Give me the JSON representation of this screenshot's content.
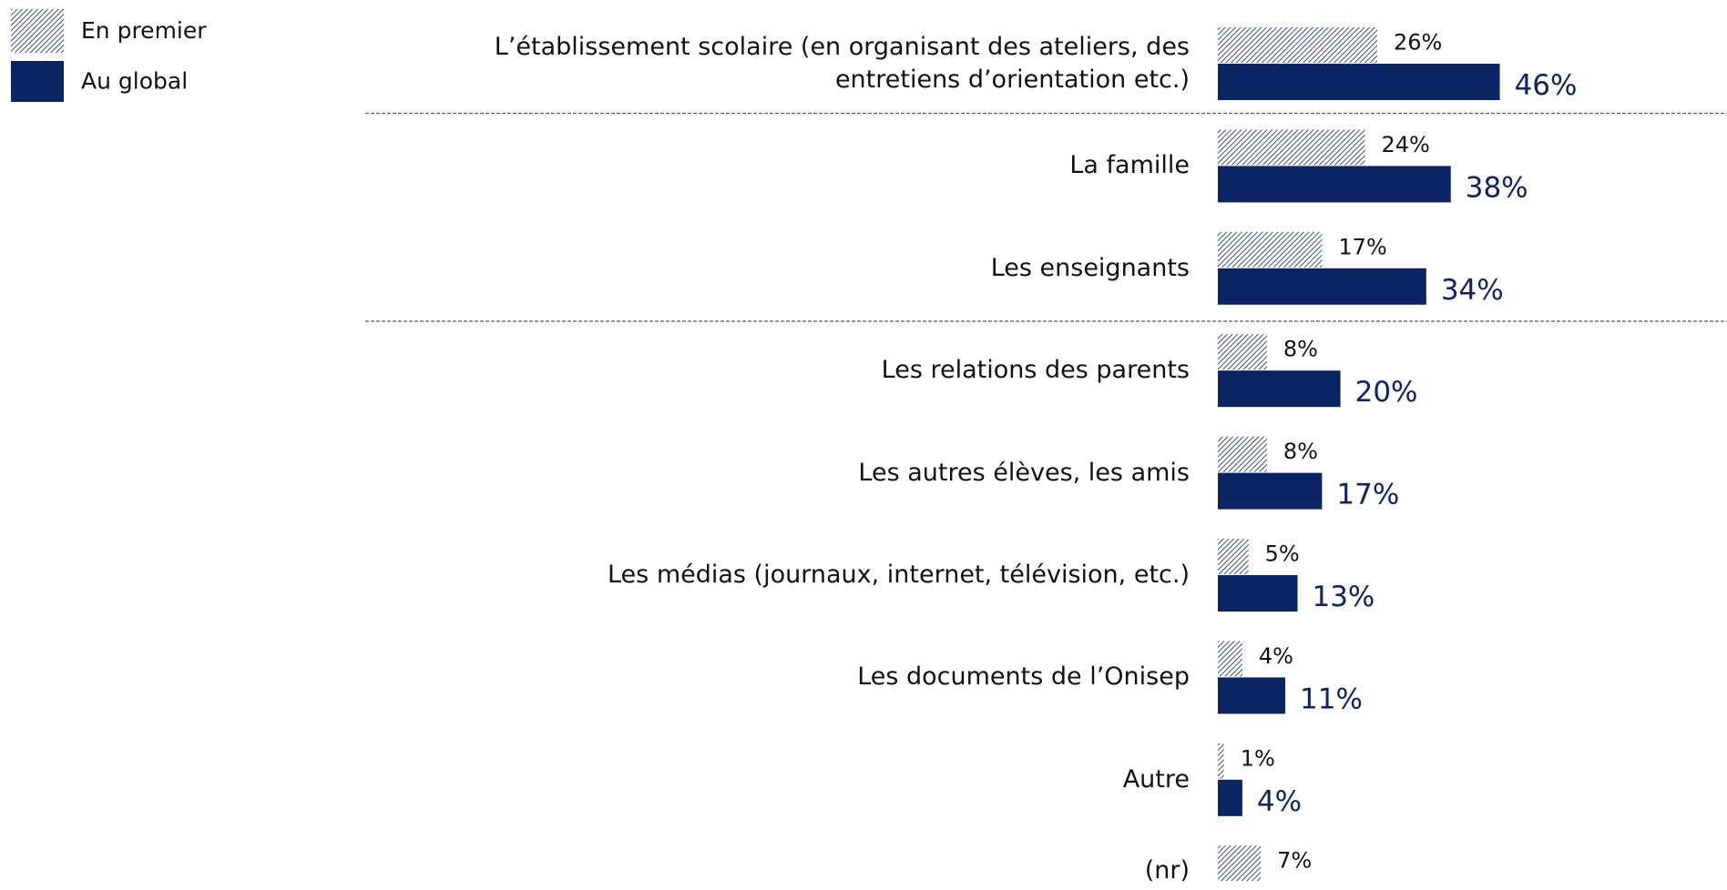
{
  "chart_data": {
    "type": "bar",
    "orientation": "horizontal",
    "categories": [
      "L’établissement scolaire (en organisant des ateliers, des entretiens d’orientation etc.)",
      "La famille",
      "Les enseignants",
      "Les relations des parents",
      "Les autres élèves, les amis",
      "Les médias (journaux, internet, télévision, etc.)",
      "Les documents de l’Onisep",
      "Autre",
      "(nr)"
    ],
    "series": [
      {
        "name": "En premier",
        "color": "#0b2463",
        "pattern": "hatch",
        "values": [
          26,
          24,
          17,
          8,
          8,
          5,
          4,
          1,
          7
        ],
        "value_labels": [
          "26%",
          "24%",
          "17%",
          "8%",
          "8%",
          "5%",
          "4%",
          "1%",
          "7%"
        ]
      },
      {
        "name": "Au global",
        "color": "#0b2463",
        "values": [
          46,
          38,
          34,
          20,
          17,
          13,
          11,
          4,
          null
        ],
        "value_labels": [
          "46%",
          "38%",
          "34%",
          "20%",
          "17%",
          "13%",
          "11%",
          "4%",
          null
        ]
      }
    ],
    "legend": "top-left"
  }
}
